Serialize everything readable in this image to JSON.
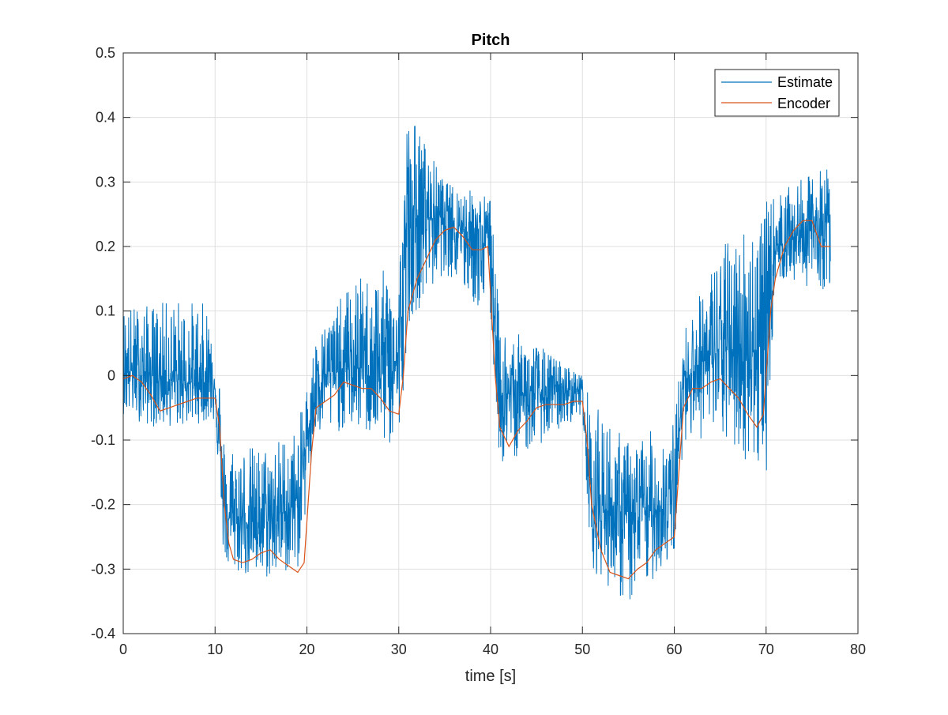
{
  "chart_data": {
    "type": "line",
    "title": "Pitch",
    "xlabel": "time [s]",
    "ylabel": "",
    "xlim": [
      0,
      80
    ],
    "ylim": [
      -0.4,
      0.5
    ],
    "xticks": [
      0,
      10,
      20,
      30,
      40,
      50,
      60,
      70,
      80
    ],
    "yticks": [
      -0.4,
      -0.3,
      -0.2,
      -0.1,
      0,
      0.1,
      0.2,
      0.3,
      0.4,
      0.5
    ],
    "xtick_labels": [
      "0",
      "10",
      "20",
      "30",
      "40",
      "50",
      "60",
      "70",
      "80"
    ],
    "ytick_labels": [
      "-0.4",
      "-0.3",
      "-0.2",
      "-0.1",
      "0",
      "0.1",
      "0.2",
      "0.3",
      "0.4",
      "0.5"
    ],
    "grid": true,
    "legend_position": "top-right",
    "legend": {
      "estimate": "Estimate",
      "encoder": "Encoder"
    },
    "colors": {
      "estimate": "#0072BD",
      "encoder": "#D95319",
      "grid": "#DFDFDF",
      "axis": "#262626"
    },
    "series": [
      {
        "name": "Estimate",
        "noise_envelope": [
          {
            "t": 0,
            "center": 0.01,
            "upper": 0.11,
            "lower": -0.06
          },
          {
            "t": 3,
            "center": 0.0,
            "upper": 0.11,
            "lower": -0.08
          },
          {
            "t": 6,
            "center": -0.01,
            "upper": 0.12,
            "lower": -0.08
          },
          {
            "t": 10,
            "center": -0.01,
            "upper": 0.11,
            "lower": -0.07
          },
          {
            "t": 11,
            "center": -0.22,
            "upper": -0.1,
            "lower": -0.3
          },
          {
            "t": 15,
            "center": -0.23,
            "upper": -0.11,
            "lower": -0.32
          },
          {
            "t": 19,
            "center": -0.2,
            "upper": -0.08,
            "lower": -0.3
          },
          {
            "t": 21,
            "center": 0.0,
            "upper": 0.06,
            "lower": -0.1
          },
          {
            "t": 25,
            "center": 0.01,
            "upper": 0.15,
            "lower": -0.08
          },
          {
            "t": 30,
            "center": 0.02,
            "upper": 0.17,
            "lower": -0.12
          },
          {
            "t": 31,
            "center": 0.24,
            "upper": 0.42,
            "lower": 0.08
          },
          {
            "t": 35,
            "center": 0.25,
            "upper": 0.3,
            "lower": 0.16
          },
          {
            "t": 40,
            "center": 0.2,
            "upper": 0.28,
            "lower": 0.08
          },
          {
            "t": 41,
            "center": -0.03,
            "upper": 0.08,
            "lower": -0.14
          },
          {
            "t": 45,
            "center": -0.03,
            "upper": 0.05,
            "lower": -0.11
          },
          {
            "t": 50,
            "center": -0.02,
            "upper": 0.0,
            "lower": -0.06
          },
          {
            "t": 51,
            "center": -0.2,
            "upper": -0.04,
            "lower": -0.3
          },
          {
            "t": 55,
            "center": -0.22,
            "upper": -0.1,
            "lower": -0.36
          },
          {
            "t": 60,
            "center": -0.2,
            "upper": -0.07,
            "lower": -0.28
          },
          {
            "t": 61,
            "center": 0.0,
            "upper": 0.07,
            "lower": -0.1
          },
          {
            "t": 65,
            "center": 0.04,
            "upper": 0.2,
            "lower": -0.1
          },
          {
            "t": 70,
            "center": 0.04,
            "upper": 0.27,
            "lower": -0.16
          },
          {
            "t": 71,
            "center": 0.2,
            "upper": 0.28,
            "lower": 0.15
          },
          {
            "t": 77,
            "center": 0.24,
            "upper": 0.33,
            "lower": 0.13
          }
        ]
      },
      {
        "name": "Encoder",
        "points": [
          {
            "t": 0,
            "v": -0.005
          },
          {
            "t": 1,
            "v": 0.0
          },
          {
            "t": 2,
            "v": -0.01
          },
          {
            "t": 3,
            "v": -0.03
          },
          {
            "t": 4,
            "v": -0.055
          },
          {
            "t": 5,
            "v": -0.05
          },
          {
            "t": 6,
            "v": -0.045
          },
          {
            "t": 7,
            "v": -0.04
          },
          {
            "t": 8,
            "v": -0.035
          },
          {
            "t": 9,
            "v": -0.035
          },
          {
            "t": 10,
            "v": -0.035
          },
          {
            "t": 10.5,
            "v": -0.08
          },
          {
            "t": 11,
            "v": -0.2
          },
          {
            "t": 11.5,
            "v": -0.26
          },
          {
            "t": 12,
            "v": -0.285
          },
          {
            "t": 13,
            "v": -0.29
          },
          {
            "t": 14,
            "v": -0.285
          },
          {
            "t": 15,
            "v": -0.275
          },
          {
            "t": 16,
            "v": -0.27
          },
          {
            "t": 17,
            "v": -0.285
          },
          {
            "t": 18,
            "v": -0.295
          },
          {
            "t": 19,
            "v": -0.305
          },
          {
            "t": 19.7,
            "v": -0.29
          },
          {
            "t": 20.5,
            "v": -0.12
          },
          {
            "t": 21,
            "v": -0.05
          },
          {
            "t": 22,
            "v": -0.04
          },
          {
            "t": 23,
            "v": -0.03
          },
          {
            "t": 24,
            "v": -0.01
          },
          {
            "t": 25,
            "v": -0.015
          },
          {
            "t": 26,
            "v": -0.02
          },
          {
            "t": 27,
            "v": -0.02
          },
          {
            "t": 28,
            "v": -0.035
          },
          {
            "t": 29,
            "v": -0.055
          },
          {
            "t": 30,
            "v": -0.06
          },
          {
            "t": 30.5,
            "v": 0.0
          },
          {
            "t": 31,
            "v": 0.1
          },
          {
            "t": 32,
            "v": 0.15
          },
          {
            "t": 33,
            "v": 0.18
          },
          {
            "t": 34,
            "v": 0.21
          },
          {
            "t": 35,
            "v": 0.225
          },
          {
            "t": 36,
            "v": 0.23
          },
          {
            "t": 37,
            "v": 0.215
          },
          {
            "t": 38,
            "v": 0.195
          },
          {
            "t": 39,
            "v": 0.195
          },
          {
            "t": 39.7,
            "v": 0.2
          },
          {
            "t": 40.5,
            "v": 0.0
          },
          {
            "t": 41,
            "v": -0.08
          },
          {
            "t": 42,
            "v": -0.11
          },
          {
            "t": 43,
            "v": -0.085
          },
          {
            "t": 44,
            "v": -0.07
          },
          {
            "t": 45,
            "v": -0.05
          },
          {
            "t": 46,
            "v": -0.045
          },
          {
            "t": 47,
            "v": -0.045
          },
          {
            "t": 48,
            "v": -0.045
          },
          {
            "t": 49,
            "v": -0.04
          },
          {
            "t": 50,
            "v": -0.04
          },
          {
            "t": 50.5,
            "v": -0.1
          },
          {
            "t": 51,
            "v": -0.2
          },
          {
            "t": 52,
            "v": -0.27
          },
          {
            "t": 53,
            "v": -0.305
          },
          {
            "t": 54,
            "v": -0.31
          },
          {
            "t": 55,
            "v": -0.315
          },
          {
            "t": 56,
            "v": -0.3
          },
          {
            "t": 57,
            "v": -0.29
          },
          {
            "t": 58,
            "v": -0.27
          },
          {
            "t": 59,
            "v": -0.26
          },
          {
            "t": 60,
            "v": -0.25
          },
          {
            "t": 60.5,
            "v": -0.15
          },
          {
            "t": 61,
            "v": -0.05
          },
          {
            "t": 62,
            "v": -0.02
          },
          {
            "t": 63,
            "v": -0.02
          },
          {
            "t": 64,
            "v": -0.01
          },
          {
            "t": 65,
            "v": -0.005
          },
          {
            "t": 66,
            "v": -0.02
          },
          {
            "t": 67,
            "v": -0.035
          },
          {
            "t": 68,
            "v": -0.06
          },
          {
            "t": 69,
            "v": -0.08
          },
          {
            "t": 69.7,
            "v": -0.06
          },
          {
            "t": 70.5,
            "v": 0.1
          },
          {
            "t": 71,
            "v": 0.15
          },
          {
            "t": 72,
            "v": 0.2
          },
          {
            "t": 73,
            "v": 0.225
          },
          {
            "t": 74,
            "v": 0.24
          },
          {
            "t": 75,
            "v": 0.24
          },
          {
            "t": 76,
            "v": 0.2
          },
          {
            "t": 77,
            "v": 0.2
          }
        ]
      }
    ]
  }
}
